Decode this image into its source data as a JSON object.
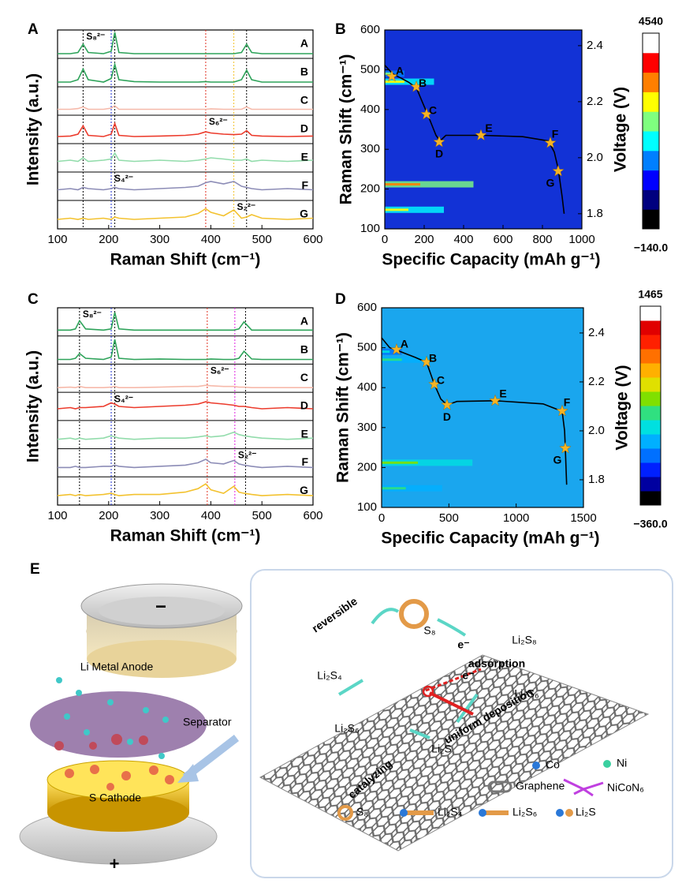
{
  "chart_data": [
    {
      "type": "line",
      "panel": "A",
      "xlabel": "Raman Shift (cm⁻¹)",
      "ylabel": "Intensity (a.u.)",
      "xlim": [
        100,
        600
      ],
      "xticks": [
        100,
        200,
        300,
        400,
        500,
        600
      ],
      "x": [
        100,
        125,
        140,
        150,
        160,
        190,
        205,
        212,
        220,
        250,
        300,
        350,
        375,
        390,
        400,
        425,
        445,
        460,
        470,
        480,
        500,
        550,
        600
      ],
      "series": [
        {
          "name": "A",
          "color": "#2ea35a",
          "values": [
            0.1,
            0.1,
            0.15,
            0.5,
            0.15,
            0.1,
            0.2,
            1.0,
            0.15,
            0.1,
            0.1,
            0.1,
            0.1,
            0.1,
            0.1,
            0.1,
            0.1,
            0.15,
            0.5,
            0.15,
            0.1,
            0.1,
            0.1
          ]
        },
        {
          "name": "B",
          "color": "#2ea35a",
          "values": [
            0.1,
            0.1,
            0.2,
            0.65,
            0.2,
            0.1,
            0.25,
            0.85,
            0.2,
            0.12,
            0.1,
            0.1,
            0.1,
            0.12,
            0.1,
            0.1,
            0.1,
            0.2,
            0.6,
            0.2,
            0.1,
            0.1,
            0.1
          ]
        },
        {
          "name": "C",
          "color": "#f6b9aa",
          "values": [
            0.15,
            0.15,
            0.18,
            0.25,
            0.15,
            0.15,
            0.2,
            0.3,
            0.15,
            0.15,
            0.15,
            0.15,
            0.15,
            0.15,
            0.17,
            0.15,
            0.15,
            0.15,
            0.25,
            0.15,
            0.15,
            0.15,
            0.15
          ]
        },
        {
          "name": "D",
          "color": "#ec3b2c",
          "values": [
            0.2,
            0.22,
            0.3,
            0.65,
            0.25,
            0.2,
            0.3,
            0.75,
            0.25,
            0.2,
            0.22,
            0.25,
            0.3,
            0.4,
            0.35,
            0.3,
            0.28,
            0.3,
            0.45,
            0.25,
            0.22,
            0.2,
            0.22
          ]
        },
        {
          "name": "E",
          "color": "#92dcab",
          "values": [
            0.35,
            0.4,
            0.35,
            0.5,
            0.35,
            0.4,
            0.45,
            0.7,
            0.4,
            0.35,
            0.4,
            0.35,
            0.4,
            0.45,
            0.5,
            0.45,
            0.4,
            0.4,
            0.45,
            0.35,
            0.4,
            0.35,
            0.4
          ]
        },
        {
          "name": "F",
          "color": "#8c8cb6",
          "values": [
            0.35,
            0.4,
            0.35,
            0.45,
            0.4,
            0.35,
            0.4,
            0.45,
            0.4,
            0.35,
            0.4,
            0.45,
            0.5,
            0.65,
            0.7,
            0.6,
            0.7,
            0.5,
            0.45,
            0.4,
            0.35,
            0.4,
            0.35
          ]
        },
        {
          "name": "G",
          "color": "#f3c22f",
          "values": [
            0.3,
            0.35,
            0.3,
            0.35,
            0.3,
            0.35,
            0.3,
            0.4,
            0.35,
            0.3,
            0.35,
            0.4,
            0.55,
            0.75,
            0.6,
            0.45,
            0.7,
            0.35,
            0.4,
            0.5,
            0.35,
            0.3,
            0.35
          ]
        }
      ],
      "guides": [
        {
          "x": 150,
          "color": "#000"
        },
        {
          "x": 212,
          "color": "#000"
        },
        {
          "x": 470,
          "color": "#000"
        },
        {
          "x": 390,
          "color": "#e03020"
        },
        {
          "x": 205,
          "color": "#1a2fd0"
        },
        {
          "x": 445,
          "color": "#f3c22f"
        }
      ],
      "annotations": [
        {
          "text": "S₈²⁻",
          "color": "#000"
        },
        {
          "text": "S₆²⁻",
          "color": "#e03020"
        },
        {
          "text": "S₄²⁻",
          "color": "#1a2fd0"
        },
        {
          "text": "S₂²⁻",
          "color": "#f3c22f"
        }
      ]
    },
    {
      "type": "heatmap",
      "panel": "B",
      "xlabel": "Specific Capacity (mAh g⁻¹)",
      "ylabel": "Raman Shift (cm⁻¹)",
      "y2label": "Voltage (V)",
      "xlim": [
        0,
        1000
      ],
      "xticks": [
        0,
        200,
        400,
        600,
        800,
        1000
      ],
      "ylim": [
        100,
        600
      ],
      "yticks": [
        100,
        200,
        300,
        400,
        500,
        600
      ],
      "y2lim": [
        1.746,
        2.456
      ],
      "y2ticks": [
        {
          "value": 1.8,
          "label": "1.8"
        },
        {
          "value": 2.0,
          "label": "2.0"
        },
        {
          "value": 2.2,
          "label": "2.2"
        },
        {
          "value": 2.4,
          "label": "2.4"
        }
      ],
      "background": "#1232d6",
      "curve": {
        "axis": "y2",
        "color": "#000",
        "x": [
          0,
          40,
          120,
          160,
          190,
          220,
          260,
          280,
          310,
          500,
          700,
          830,
          860,
          880,
          900,
          910
        ],
        "values": [
          2.33,
          2.3,
          2.27,
          2.25,
          2.2,
          2.15,
          2.08,
          2.06,
          2.08,
          2.08,
          2.075,
          2.06,
          2.02,
          1.96,
          1.86,
          1.8
        ]
      },
      "points": {
        "axis": "y2",
        "color": "#f5b324",
        "labels": [
          "A",
          "B",
          "C",
          "D",
          "E",
          "F",
          "G"
        ],
        "x": [
          36,
          160,
          212,
          276,
          488,
          840,
          880
        ],
        "values": [
          2.29,
          2.253,
          2.155,
          2.056,
          2.08,
          2.053,
          1.952
        ]
      },
      "colorbar": {
        "lim": [
          -140,
          4540
        ],
        "ticks": [
          {
            "value": -140,
            "label": "−140.0"
          },
          4540
        ],
        "colormap": [
          "#000000",
          "#00007f",
          "#0000ff",
          "#007fff",
          "#00ffff",
          "#7fff7f",
          "#ffff00",
          "#ff7f00",
          "#ff0000",
          "#ffffff"
        ]
      }
    },
    {
      "type": "line",
      "panel": "C",
      "xlabel": "Raman Shift (cm⁻¹)",
      "ylabel": "Intensity (a.u.)",
      "xlim": [
        100,
        600
      ],
      "xticks": [
        100,
        200,
        300,
        400,
        500,
        600
      ],
      "x": [
        100,
        125,
        135,
        143,
        155,
        190,
        205,
        212,
        220,
        250,
        300,
        350,
        375,
        390,
        400,
        425,
        445,
        455,
        465,
        480,
        500,
        550,
        600
      ],
      "series": [
        {
          "name": "A",
          "color": "#2ea35a",
          "values": [
            0.15,
            0.15,
            0.2,
            0.55,
            0.2,
            0.15,
            0.2,
            0.9,
            0.2,
            0.15,
            0.15,
            0.15,
            0.15,
            0.15,
            0.15,
            0.15,
            0.15,
            0.2,
            0.5,
            0.15,
            0.15,
            0.15,
            0.15
          ]
        },
        {
          "name": "B",
          "color": "#2ea35a",
          "values": [
            0.1,
            0.1,
            0.15,
            0.35,
            0.15,
            0.1,
            0.2,
            0.95,
            0.15,
            0.1,
            0.12,
            0.1,
            0.1,
            0.1,
            0.12,
            0.1,
            0.1,
            0.15,
            0.45,
            0.12,
            0.1,
            0.1,
            0.1
          ]
        },
        {
          "name": "C",
          "color": "#f6b9aa",
          "values": [
            0.1,
            0.12,
            0.1,
            0.15,
            0.1,
            0.1,
            0.12,
            0.15,
            0.1,
            0.1,
            0.12,
            0.15,
            0.15,
            0.2,
            0.18,
            0.15,
            0.15,
            0.12,
            0.12,
            0.1,
            0.1,
            0.1,
            0.1
          ]
        },
        {
          "name": "D",
          "color": "#ec3b2c",
          "values": [
            0.4,
            0.45,
            0.4,
            0.45,
            0.45,
            0.5,
            0.65,
            0.6,
            0.5,
            0.45,
            0.5,
            0.55,
            0.6,
            0.7,
            0.65,
            0.6,
            0.55,
            0.5,
            0.5,
            0.45,
            0.4,
            0.45,
            0.4
          ]
        },
        {
          "name": "E",
          "color": "#92dcab",
          "values": [
            0.3,
            0.35,
            0.3,
            0.35,
            0.3,
            0.35,
            0.45,
            0.4,
            0.35,
            0.3,
            0.35,
            0.35,
            0.4,
            0.45,
            0.4,
            0.45,
            0.6,
            0.5,
            0.45,
            0.4,
            0.35,
            0.3,
            0.35
          ]
        },
        {
          "name": "F",
          "color": "#8c8cb6",
          "values": [
            0.3,
            0.3,
            0.35,
            0.3,
            0.3,
            0.35,
            0.35,
            0.4,
            0.35,
            0.3,
            0.35,
            0.4,
            0.5,
            0.65,
            0.5,
            0.45,
            0.6,
            0.45,
            0.4,
            0.35,
            0.3,
            0.35,
            0.3
          ]
        },
        {
          "name": "G",
          "color": "#f3c22f",
          "values": [
            0.3,
            0.35,
            0.3,
            0.35,
            0.3,
            0.35,
            0.4,
            0.35,
            0.3,
            0.35,
            0.35,
            0.45,
            0.6,
            0.8,
            0.55,
            0.4,
            0.7,
            0.45,
            0.4,
            0.35,
            0.3,
            0.35,
            0.3
          ]
        }
      ],
      "guides": [
        {
          "x": 143,
          "color": "#000"
        },
        {
          "x": 212,
          "color": "#000"
        },
        {
          "x": 468,
          "color": "#000"
        },
        {
          "x": 393,
          "color": "#e03020"
        },
        {
          "x": 205,
          "color": "#1a2fd0"
        },
        {
          "x": 447,
          "color": "#e020e0"
        }
      ],
      "annotations": [
        {
          "text": "S₈²⁻",
          "color": "#000"
        },
        {
          "text": "S₆²⁻",
          "color": "#e03020"
        },
        {
          "text": "S₄²⁻",
          "color": "#1a2fd0"
        },
        {
          "text": "S₂²⁻",
          "color": "#e020e0"
        }
      ]
    },
    {
      "type": "heatmap",
      "panel": "D",
      "xlabel": "Specific Capacity (mAh g⁻¹)",
      "ylabel": "Raman Shift (cm⁻¹)",
      "y2label": "Voltage (V)",
      "xlim": [
        0,
        1500
      ],
      "xticks": [
        0,
        500,
        1000,
        1500
      ],
      "ylim": [
        100,
        600
      ],
      "yticks": [
        100,
        200,
        300,
        400,
        500,
        600
      ],
      "y2lim": [
        1.687,
        2.503
      ],
      "y2ticks": [
        {
          "value": 1.8,
          "label": "1.8"
        },
        {
          "value": 2.0,
          "label": "2.0"
        },
        {
          "value": 2.2,
          "label": "2.2"
        },
        {
          "value": 2.4,
          "label": "2.4"
        }
      ],
      "background": "#1aa6ee",
      "curve": {
        "axis": "y2",
        "color": "#000",
        "x": [
          0,
          60,
          111,
          250,
          334,
          392,
          440,
          486,
          560,
          844,
          1200,
          1342,
          1360,
          1365,
          1375
        ],
        "values": [
          2.38,
          2.34,
          2.33,
          2.3,
          2.28,
          2.19,
          2.13,
          2.106,
          2.12,
          2.123,
          2.11,
          2.08,
          2.0,
          1.93,
          1.78
        ]
      },
      "points": {
        "axis": "y2",
        "color": "#f5b324",
        "labels": [
          "A",
          "B",
          "C",
          "D",
          "E",
          "F",
          "G"
        ],
        "x": [
          111,
          334,
          392,
          486,
          844,
          1342,
          1365
        ],
        "values": [
          2.332,
          2.281,
          2.19,
          2.106,
          2.123,
          2.081,
          1.929
        ]
      },
      "colorbar": {
        "lim": [
          -360,
          1465
        ],
        "ticks": [
          {
            "value": -360,
            "label": "−360.0"
          },
          1465
        ],
        "colormap": [
          "#000000",
          "#0000a0",
          "#0020ff",
          "#0070ff",
          "#00b0ff",
          "#00e0e0",
          "#30e080",
          "#80e000",
          "#e0e000",
          "#ffb000",
          "#ff7000",
          "#ff2000",
          "#e00000",
          "#ffffff"
        ]
      }
    }
  ],
  "diagram": {
    "panel": "E",
    "anode": "Li Metal Anode",
    "minus": "−",
    "separator": "Separator",
    "cathode": "S Cathode",
    "plus": "+",
    "labels": [
      "reversible",
      "S₈",
      "Li₂S₈",
      "adsorption",
      "e⁻",
      "e⁻",
      "Li₂S₄",
      "Li₂S₆",
      "Li₂S₆",
      "uniform deposition",
      "Li₂S",
      "catalyzing"
    ],
    "legend": [
      "Co",
      "Ni",
      "Graphene",
      "NiCoN₆",
      "S₈",
      "Li₂S₄",
      "Li₂S₆",
      "Li₂S"
    ]
  }
}
